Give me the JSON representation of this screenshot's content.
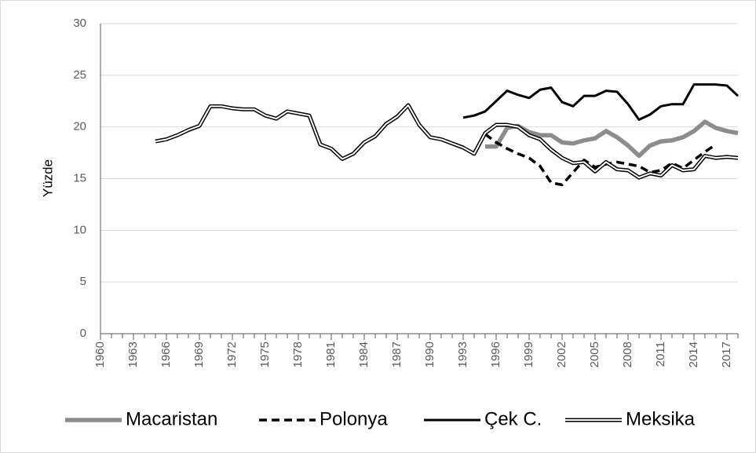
{
  "chart_data": {
    "type": "line",
    "y_label": "Yüzde",
    "x": [
      1960,
      1961,
      1962,
      1963,
      1964,
      1965,
      1966,
      1967,
      1968,
      1969,
      1970,
      1971,
      1972,
      1973,
      1974,
      1975,
      1976,
      1977,
      1978,
      1979,
      1980,
      1981,
      1982,
      1983,
      1984,
      1985,
      1986,
      1987,
      1988,
      1989,
      1990,
      1991,
      1992,
      1993,
      1994,
      1995,
      1996,
      1997,
      1998,
      1999,
      2000,
      2001,
      2002,
      2003,
      2004,
      2005,
      2006,
      2007,
      2008,
      2009,
      2010,
      2011,
      2012,
      2013,
      2014,
      2015,
      2016,
      2017,
      2018
    ],
    "xlim": [
      1960,
      2018
    ],
    "xticks": [
      1960,
      1963,
      1966,
      1969,
      1972,
      1975,
      1978,
      1981,
      1984,
      1987,
      1990,
      1993,
      1996,
      1999,
      2002,
      2005,
      2008,
      2011,
      2014,
      2017
    ],
    "ylim": [
      0,
      30
    ],
    "yticks": [
      0,
      5,
      10,
      15,
      20,
      25,
      30
    ],
    "grid": true,
    "legend": "bottom",
    "series": [
      {
        "name": "Macaristan",
        "color": "#8c8c8c",
        "style": "solid",
        "values": [
          null,
          null,
          null,
          null,
          null,
          null,
          null,
          null,
          null,
          null,
          null,
          null,
          null,
          null,
          null,
          null,
          null,
          null,
          null,
          null,
          null,
          null,
          null,
          null,
          null,
          null,
          null,
          null,
          null,
          null,
          null,
          null,
          null,
          null,
          null,
          18.1,
          18.1,
          19.9,
          20.1,
          19.5,
          19.2,
          19.2,
          18.5,
          18.4,
          18.7,
          18.9,
          19.6,
          19.0,
          18.2,
          17.2,
          18.2,
          18.6,
          18.7,
          19.0,
          19.6,
          20.5,
          19.9,
          19.6,
          19.4
        ]
      },
      {
        "name": "Polonya",
        "color": "#000000",
        "style": "dashed",
        "values": [
          null,
          null,
          null,
          null,
          null,
          null,
          null,
          null,
          null,
          null,
          null,
          null,
          null,
          null,
          null,
          null,
          null,
          null,
          null,
          null,
          null,
          null,
          null,
          null,
          null,
          null,
          null,
          null,
          null,
          null,
          null,
          null,
          null,
          null,
          null,
          19.3,
          18.5,
          17.9,
          17.4,
          17.0,
          16.2,
          14.6,
          14.4,
          15.6,
          16.8,
          16.1,
          16.4,
          16.6,
          16.4,
          16.2,
          15.6,
          15.8,
          16.5,
          16.0,
          16.8,
          17.6,
          18.3,
          null,
          null
        ]
      },
      {
        "name": "Çek C.",
        "color": "#000000",
        "style": "solid",
        "values": [
          null,
          null,
          null,
          null,
          null,
          null,
          null,
          null,
          null,
          null,
          null,
          null,
          null,
          null,
          null,
          null,
          null,
          null,
          null,
          null,
          null,
          null,
          null,
          null,
          null,
          null,
          null,
          null,
          null,
          null,
          null,
          null,
          null,
          20.9,
          21.1,
          21.5,
          22.5,
          23.5,
          23.1,
          22.8,
          23.6,
          23.8,
          22.4,
          22.0,
          23.0,
          23.0,
          23.5,
          23.4,
          22.2,
          20.7,
          21.2,
          22.0,
          22.2,
          22.2,
          24.1,
          24.1,
          24.1,
          24.0,
          23.0
        ]
      },
      {
        "name": "Meksika",
        "color": "#000000",
        "style": "double",
        "values": [
          null,
          null,
          null,
          null,
          null,
          18.6,
          18.8,
          19.2,
          19.7,
          20.1,
          22.0,
          22.0,
          21.8,
          21.7,
          21.7,
          21.1,
          20.8,
          21.5,
          21.3,
          21.1,
          18.3,
          17.9,
          16.9,
          17.4,
          18.5,
          19.1,
          20.3,
          21.0,
          22.1,
          20.2,
          19.0,
          18.8,
          18.4,
          18.0,
          17.4,
          19.4,
          20.2,
          20.2,
          20.0,
          19.2,
          18.8,
          17.8,
          17.0,
          16.5,
          16.6,
          15.7,
          16.6,
          15.9,
          15.8,
          15.1,
          15.5,
          15.3,
          16.3,
          15.8,
          15.9,
          17.2,
          17.0,
          17.1,
          17.0
        ]
      }
    ]
  }
}
